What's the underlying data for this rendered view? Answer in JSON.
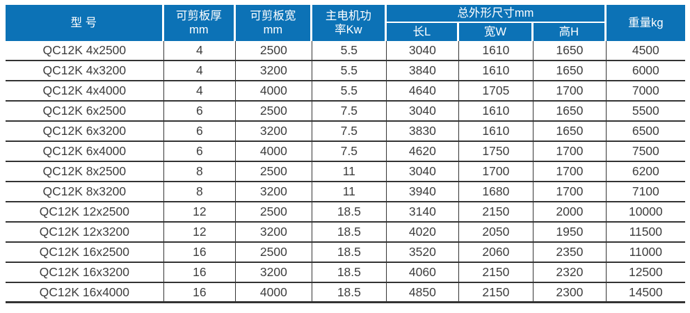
{
  "colors": {
    "header_bg": "#0c72b6",
    "header_text": "#ffffff",
    "body_text": "#3d3d3d",
    "grid_line": "#333333"
  },
  "table": {
    "header": {
      "model": "型 号",
      "thickness_line1": "可剪板厚",
      "thickness_line2": "mm",
      "width_line1": "可剪板宽",
      "width_line2": "mm",
      "power_line1": "主电机功",
      "power_line2": "率Kw",
      "dimensions_group": "总外形尺寸mm",
      "dim_length": "长L",
      "dim_width": "宽W",
      "dim_height": "高H",
      "weight": "重量kg"
    },
    "rows": [
      [
        "QC12K 4x2500",
        "4",
        "2500",
        "5.5",
        "3040",
        "1610",
        "1650",
        "4500"
      ],
      [
        "QC12K 4x3200",
        "4",
        "3200",
        "5.5",
        "3840",
        "1610",
        "1650",
        "6000"
      ],
      [
        "QC12K 4x4000",
        "4",
        "4000",
        "5.5",
        "4640",
        "1705",
        "1700",
        "7000"
      ],
      [
        "QC12K 6x2500",
        "6",
        "2500",
        "7.5",
        "3040",
        "1610",
        "1650",
        "5500"
      ],
      [
        "QC12K 6x3200",
        "6",
        "3200",
        "7.5",
        "3830",
        "1610",
        "1650",
        "6500"
      ],
      [
        "QC12K 6x4000",
        "6",
        "4000",
        "7.5",
        "4620",
        "1750",
        "1700",
        "7500"
      ],
      [
        "QC12K 8x2500",
        "8",
        "2500",
        "11",
        "3040",
        "1700",
        "1700",
        "6200"
      ],
      [
        "QC12K 8x3200",
        "8",
        "3200",
        "11",
        "3940",
        "1680",
        "1700",
        "7100"
      ],
      [
        "QC12K 12x2500",
        "12",
        "2500",
        "18.5",
        "3140",
        "2150",
        "2000",
        "10000"
      ],
      [
        "QC12K 12x3200",
        "12",
        "3200",
        "18.5",
        "4020",
        "2050",
        "1950",
        "11500"
      ],
      [
        "QC12K 16x2500",
        "16",
        "2500",
        "18.5",
        "3520",
        "2060",
        "2350",
        "11000"
      ],
      [
        "QC12K 16x3200",
        "16",
        "3200",
        "18.5",
        "4060",
        "2150",
        "2320",
        "12500"
      ],
      [
        "QC12K 16x4000",
        "16",
        "4000",
        "18.5",
        "4850",
        "2150",
        "2300",
        "14500"
      ]
    ]
  }
}
